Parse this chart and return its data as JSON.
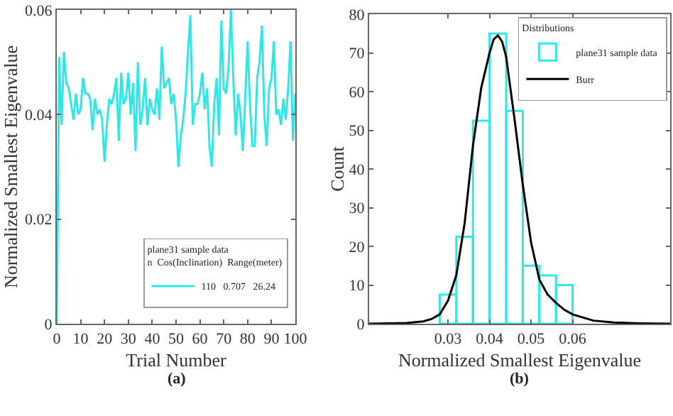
{
  "chart_data": [
    {
      "type": "line",
      "xlabel": "Trial Number",
      "ylabel": "Normalized Smallest Eigenvalue",
      "legend_title": "plane31 sample data\nn  Cos(Inclination)  Range(meter)",
      "legend": "bottom right",
      "xlim": [
        0,
        100
      ],
      "xticks": [
        0,
        10,
        20,
        30,
        40,
        50,
        60,
        70,
        80,
        90,
        100
      ],
      "ylim": [
        0,
        0.06
      ],
      "yticks": [
        0,
        0.02,
        0.04,
        0.06
      ],
      "grid": false,
      "annotations": [
        "(a)"
      ],
      "x": [
        0,
        1,
        2,
        3,
        4,
        5,
        6,
        7,
        8,
        9,
        10,
        11,
        12,
        13,
        14,
        15,
        16,
        17,
        18,
        19,
        20,
        21,
        22,
        23,
        24,
        25,
        26,
        27,
        28,
        29,
        30,
        31,
        32,
        33,
        34,
        35,
        36,
        37,
        38,
        39,
        40,
        41,
        42,
        43,
        44,
        45,
        46,
        47,
        48,
        49,
        50,
        51,
        52,
        53,
        54,
        55,
        56,
        57,
        58,
        59,
        60,
        61,
        62,
        63,
        64,
        65,
        66,
        67,
        68,
        69,
        70,
        71,
        72,
        73,
        74,
        75,
        76,
        77,
        78,
        79,
        80,
        81,
        82,
        83,
        84,
        85,
        86,
        87,
        88,
        89,
        90,
        91,
        92,
        93,
        94,
        95,
        96,
        97,
        98,
        99,
        100
      ],
      "series": [
        {
          "name": "110   0.707   26.24",
          "color": "#2ee8e8",
          "values": [
            0,
            0.051,
            0.038,
            0.052,
            0.046,
            0.045,
            0.042,
            0.039,
            0.044,
            0.04,
            0.041,
            0.047,
            0.044,
            0.044,
            0.043,
            0.037,
            0.043,
            0.04,
            0.041,
            0.039,
            0.031,
            0.038,
            0.043,
            0.042,
            0.044,
            0.047,
            0.035,
            0.048,
            0.042,
            0.043,
            0.048,
            0.04,
            0.046,
            0.033,
            0.05,
            0.038,
            0.041,
            0.047,
            0.038,
            0.043,
            0.041,
            0.04,
            0.045,
            0.039,
            0.053,
            0.045,
            0.046,
            0.047,
            0.042,
            0.044,
            0.039,
            0.03,
            0.036,
            0.039,
            0.044,
            0.052,
            0.059,
            0.038,
            0.042,
            0.042,
            0.044,
            0.048,
            0.041,
            0.045,
            0.034,
            0.03,
            0.042,
            0.047,
            0.036,
            0.058,
            0.045,
            0.044,
            0.049,
            0.06,
            0.047,
            0.036,
            0.044,
            0.04,
            0.033,
            0.043,
            0.054,
            0.042,
            0.034,
            0.034,
            0.047,
            0.05,
            0.057,
            0.04,
            0.034,
            0.045,
            0.047,
            0.054,
            0.04,
            0.041,
            0.038,
            0.043,
            0.039,
            0.045,
            0.054,
            0.035,
            0.044
          ]
        }
      ]
    },
    {
      "type": "histogram",
      "xlabel": "Normalized Smallest Eigenvalue",
      "ylabel": "Count",
      "legend_title": "Distributions",
      "legend": "top right",
      "xlim": [
        0.011,
        0.0835
      ],
      "xticks": [
        0.03,
        0.04,
        0.05,
        0.06
      ],
      "ylim": [
        0,
        80
      ],
      "yticks": [
        0,
        10,
        20,
        30,
        40,
        50,
        60,
        70,
        80
      ],
      "grid": false,
      "annotations": [
        "(b)"
      ],
      "series": [
        {
          "name": "plane31 sample data",
          "color": "#2ee8e8",
          "bins": [
            0.028,
            0.032,
            0.036,
            0.04,
            0.044,
            0.048,
            0.052,
            0.056,
            0.06
          ],
          "values": [
            7.5,
            22.5,
            52.5,
            75,
            55,
            15,
            12.5,
            10
          ]
        },
        {
          "name": "Burr",
          "type": "line",
          "color": "#000000",
          "x": [
            0.011,
            0.016,
            0.02,
            0.024,
            0.026,
            0.028,
            0.03,
            0.032,
            0.034,
            0.036,
            0.038,
            0.04,
            0.041,
            0.042,
            0.043,
            0.044,
            0.046,
            0.048,
            0.05,
            0.052,
            0.054,
            0.056,
            0.058,
            0.06,
            0.065,
            0.07,
            0.076,
            0.0835
          ],
          "values": [
            0,
            0.1,
            0.2,
            0.6,
            1.2,
            2.4,
            6,
            12.6,
            26,
            46,
            61,
            70,
            73.5,
            74.5,
            73,
            69,
            53,
            36,
            21,
            11.4,
            7.5,
            5.4,
            3.6,
            2.4,
            0.8,
            0.3,
            0.1,
            0
          ]
        }
      ]
    }
  ]
}
